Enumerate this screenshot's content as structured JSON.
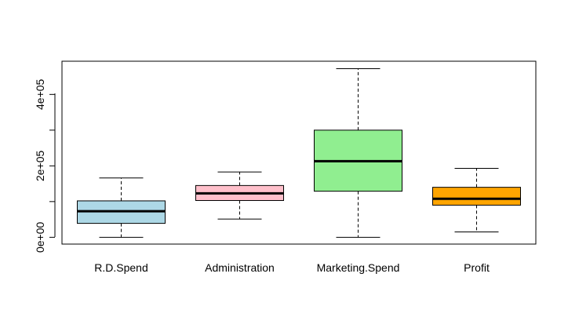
{
  "chart_data": {
    "type": "boxplot",
    "categories": [
      "R.D.Spend",
      "Administration",
      "Marketing.Spend",
      "Profit"
    ],
    "colors": [
      "#add8e6",
      "#ffc0cb",
      "#90ee90",
      "#ffa500"
    ],
    "boxes": [
      {
        "name": "R.D.Spend",
        "min": 0,
        "q1": 39000,
        "median": 73000,
        "q3": 102000,
        "max": 166000
      },
      {
        "name": "Administration",
        "min": 51000,
        "q1": 103000,
        "median": 123000,
        "q3": 145000,
        "max": 183000
      },
      {
        "name": "Marketing.Spend",
        "min": 0,
        "q1": 129000,
        "median": 213000,
        "q3": 300000,
        "max": 472000
      },
      {
        "name": "Profit",
        "min": 15000,
        "q1": 90000,
        "median": 108000,
        "q3": 140000,
        "max": 193000
      }
    ],
    "yticks": [
      0,
      100000,
      200000,
      300000,
      400000
    ],
    "ytick_labels": [
      "0e+00",
      "",
      "2e+05",
      "",
      "4e+05"
    ],
    "ylim": [
      -19000,
      493000
    ],
    "title": "",
    "xlabel": "",
    "ylabel": "",
    "grid": false,
    "legend": "none"
  }
}
